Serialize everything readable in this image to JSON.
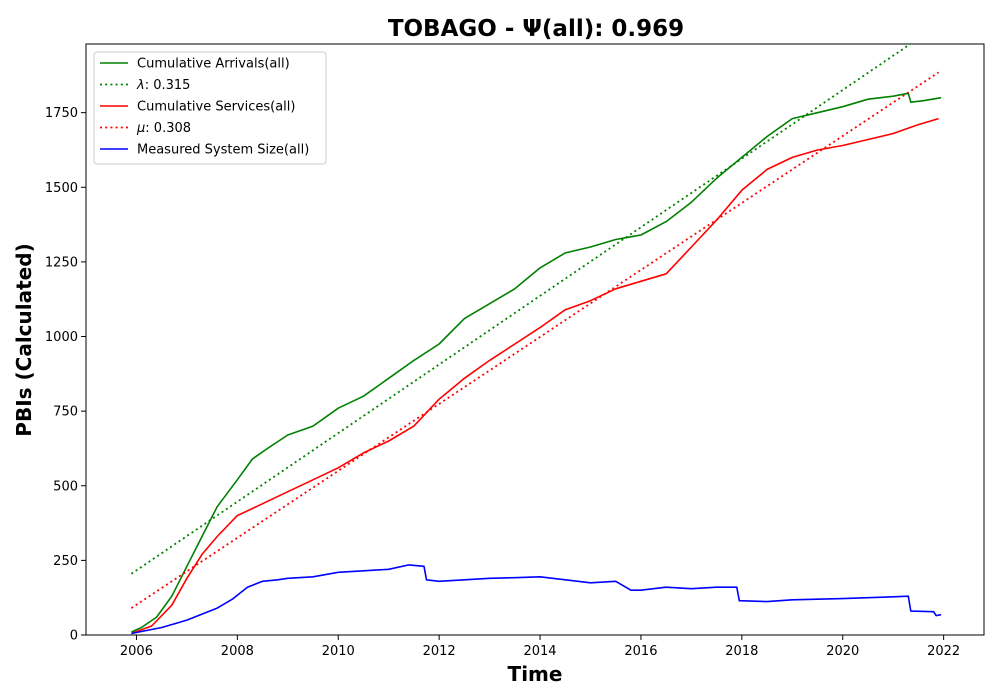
{
  "chart_data": {
    "type": "line",
    "title": "TOBAGO -  Ψ(all): 0.969",
    "xlabel": "Time",
    "ylabel": "PBIs (Calculated)",
    "xlim": [
      2005.0,
      2022.8
    ],
    "ylim": [
      0,
      1980
    ],
    "xticks": [
      2006,
      2008,
      2010,
      2012,
      2014,
      2016,
      2018,
      2020,
      2022
    ],
    "yticks": [
      0,
      250,
      500,
      750,
      1000,
      1250,
      1500,
      1750
    ],
    "grid": false,
    "legend_position": "top-left",
    "series": [
      {
        "name": "Cumulative Arrivals(all)",
        "color": "#008000",
        "style": "solid",
        "x": [
          2005.9,
          2006.1,
          2006.4,
          2006.7,
          2007.0,
          2007.3,
          2007.6,
          2008.0,
          2008.3,
          2008.6,
          2009.0,
          2009.5,
          2010.0,
          2010.5,
          2011.0,
          2011.5,
          2012.0,
          2012.5,
          2013.0,
          2013.5,
          2014.0,
          2014.5,
          2015.0,
          2015.5,
          2016.0,
          2016.5,
          2017.0,
          2017.5,
          2018.0,
          2018.5,
          2019.0,
          2019.5,
          2020.0,
          2020.5,
          2021.0,
          2021.3,
          2021.35,
          2021.6,
          2021.95
        ],
        "y": [
          10,
          25,
          60,
          130,
          230,
          330,
          430,
          520,
          590,
          625,
          670,
          700,
          760,
          800,
          860,
          920,
          975,
          1060,
          1110,
          1160,
          1230,
          1280,
          1300,
          1325,
          1340,
          1385,
          1450,
          1530,
          1600,
          1670,
          1730,
          1750,
          1770,
          1795,
          1805,
          1815,
          1785,
          1790,
          1800
        ]
      },
      {
        "name": "λ: 0.315",
        "label_symbol": "λ",
        "label_value": ": 0.315",
        "color": "#008000",
        "style": "dotted",
        "x": [
          2005.9,
          2021.95
        ],
        "y": [
          205,
          2050
        ]
      },
      {
        "name": "Cumulative Services(all)",
        "color": "#ff0000",
        "style": "solid",
        "x": [
          2005.9,
          2006.3,
          2006.7,
          2007.0,
          2007.3,
          2007.6,
          2008.0,
          2008.5,
          2009.0,
          2009.5,
          2010.0,
          2010.5,
          2011.0,
          2011.5,
          2012.0,
          2012.5,
          2013.0,
          2013.5,
          2014.0,
          2014.5,
          2015.0,
          2015.5,
          2016.0,
          2016.5,
          2017.0,
          2017.5,
          2018.0,
          2018.5,
          2019.0,
          2019.5,
          2020.0,
          2020.5,
          2021.0,
          2021.5,
          2021.9
        ],
        "y": [
          5,
          30,
          100,
          190,
          270,
          330,
          400,
          440,
          480,
          520,
          560,
          610,
          650,
          700,
          790,
          860,
          920,
          975,
          1030,
          1090,
          1120,
          1160,
          1185,
          1210,
          1300,
          1390,
          1490,
          1560,
          1600,
          1625,
          1640,
          1660,
          1680,
          1710,
          1730
        ]
      },
      {
        "name": "μ: 0.308",
        "label_symbol": "μ",
        "label_value": ": 0.308",
        "color": "#ff0000",
        "style": "dotted",
        "x": [
          2005.9,
          2021.9
        ],
        "y": [
          90,
          1885
        ]
      },
      {
        "name": "Measured System Size(all)",
        "color": "#0000ff",
        "style": "solid",
        "x": [
          2005.9,
          2006.2,
          2006.5,
          2006.8,
          2007.0,
          2007.3,
          2007.6,
          2007.9,
          2008.2,
          2008.5,
          2008.8,
          2009.0,
          2009.5,
          2010.0,
          2010.5,
          2011.0,
          2011.4,
          2011.7,
          2011.75,
          2012.0,
          2012.5,
          2013.0,
          2013.5,
          2014.0,
          2014.5,
          2015.0,
          2015.5,
          2015.8,
          2016.0,
          2016.5,
          2017.0,
          2017.5,
          2017.9,
          2017.95,
          2018.5,
          2019.0,
          2019.5,
          2020.0,
          2020.5,
          2021.0,
          2021.3,
          2021.35,
          2021.8,
          2021.85,
          2021.95
        ],
        "y": [
          5,
          15,
          25,
          40,
          50,
          70,
          90,
          120,
          160,
          180,
          185,
          190,
          195,
          210,
          215,
          220,
          235,
          230,
          185,
          180,
          185,
          190,
          192,
          195,
          185,
          175,
          180,
          150,
          150,
          160,
          155,
          160,
          160,
          115,
          112,
          118,
          120,
          122,
          125,
          128,
          130,
          80,
          78,
          65,
          68
        ]
      }
    ]
  }
}
